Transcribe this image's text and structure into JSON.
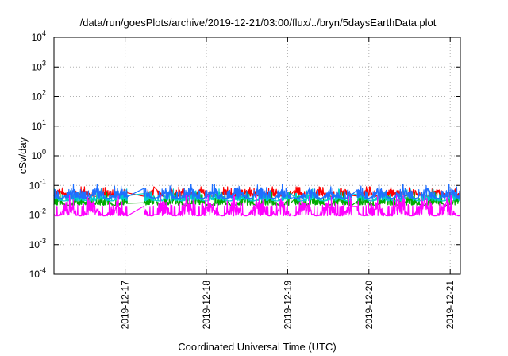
{
  "chart_data": {
    "type": "line",
    "title": "/data/run/goesPlots/archive/2019-12-21/03:00/flux/../bryn/5daysEarthData.plot",
    "xlabel": "Coordinated Universal Time (UTC)",
    "ylabel": "cSv/day",
    "yscale": "log",
    "ylim": [
      0.0001,
      10000
    ],
    "y_ticks": [
      {
        "base": "10",
        "exp": "-4"
      },
      {
        "base": "10",
        "exp": "-3"
      },
      {
        "base": "10",
        "exp": "-2"
      },
      {
        "base": "10",
        "exp": "-1"
      },
      {
        "base": "10",
        "exp": "0"
      },
      {
        "base": "10",
        "exp": "1"
      },
      {
        "base": "10",
        "exp": "2"
      },
      {
        "base": "10",
        "exp": "3"
      },
      {
        "base": "10",
        "exp": "4"
      }
    ],
    "xlim": [
      "2019-12-16T03:00",
      "2019-12-21T03:00"
    ],
    "x_ticks": [
      "2019-12-17",
      "2019-12-18",
      "2019-12-19",
      "2019-12-20",
      "2019-12-21"
    ],
    "grid": true,
    "legend": "none",
    "series": [
      {
        "color": "#ff0000",
        "low": 0.028,
        "high": 0.09
      },
      {
        "color": "#00aa00",
        "low": 0.012,
        "high": 0.06
      },
      {
        "color": "#00cccc",
        "low": 0.018,
        "high": 0.075
      },
      {
        "color": "#1f6fff",
        "low": 0.02,
        "high": 0.11
      },
      {
        "color": "#ff00ff",
        "low": 0.004,
        "high": 0.045
      }
    ],
    "gaps": [
      [
        "2019-12-17T00:40",
        "2019-12-17T05:30"
      ],
      [
        "2019-12-17T08:30",
        "2019-12-17T09:30"
      ],
      [
        "2019-12-19T01:00",
        "2019-12-19T02:00"
      ],
      [
        "2019-12-19T19:00",
        "2019-12-19T20:30"
      ]
    ]
  }
}
